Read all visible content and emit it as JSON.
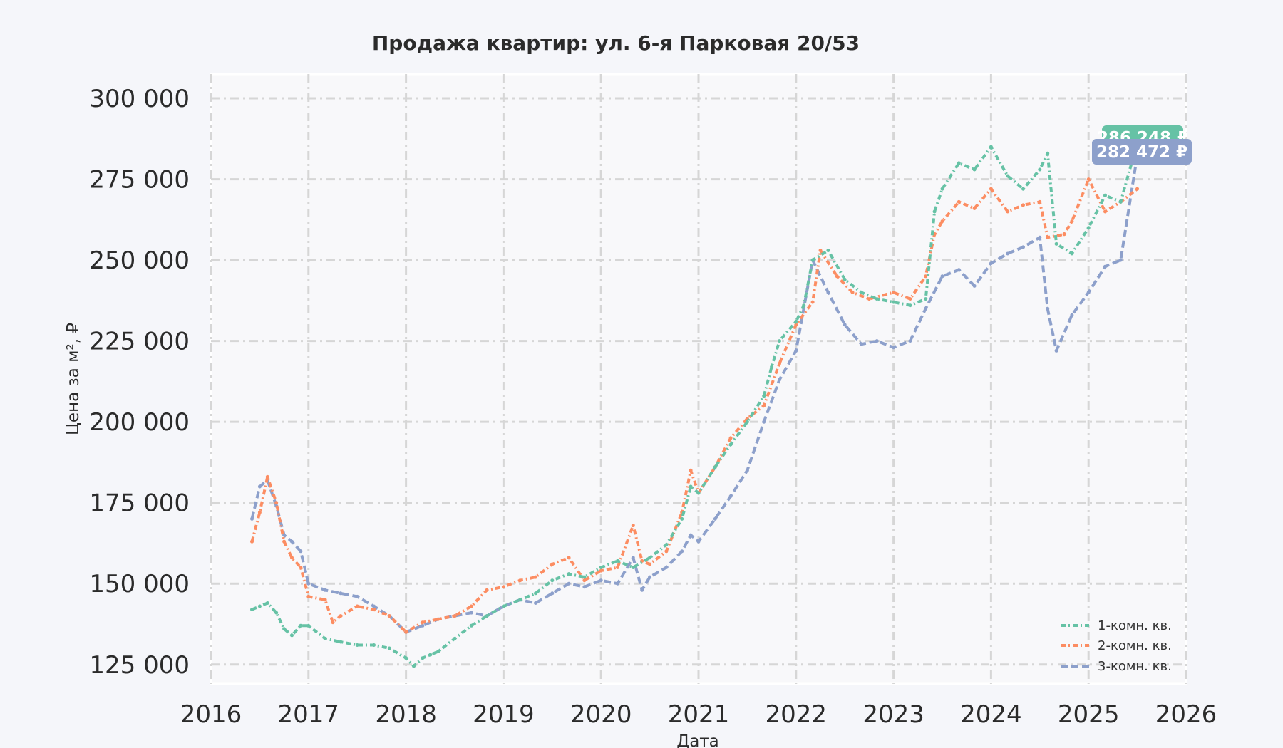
{
  "chart_data": {
    "type": "line",
    "title": "Продажа квартир: ул. 6-я Парковая 20/53",
    "xlabel": "Дата",
    "ylabel": "Цена за м², ₽",
    "xlim": [
      2016,
      2026
    ],
    "ylim": [
      119000,
      307500
    ],
    "x_ticks": [
      "2016",
      "2017",
      "2018",
      "2019",
      "2020",
      "2021",
      "2022",
      "2023",
      "2024",
      "2025",
      "2026"
    ],
    "y_ticks": [
      {
        "value": 125000,
        "label": "125 000"
      },
      {
        "value": 150000,
        "label": "150 000"
      },
      {
        "value": 175000,
        "label": "175 000"
      },
      {
        "value": 200000,
        "label": "200 000"
      },
      {
        "value": 225000,
        "label": "225 000"
      },
      {
        "value": 250000,
        "label": "250 000"
      },
      {
        "value": 275000,
        "label": "275 000"
      },
      {
        "value": 300000,
        "label": "300 000"
      }
    ],
    "grid": true,
    "legend_position": "bottom-right",
    "series": [
      {
        "name": "1-комн. кв.",
        "color": "#66c2a5",
        "x": [
          2016.42,
          2016.5,
          2016.58,
          2016.67,
          2016.75,
          2016.83,
          2016.92,
          2017.0,
          2017.17,
          2017.33,
          2017.5,
          2017.67,
          2017.83,
          2018.0,
          2018.08,
          2018.17,
          2018.25,
          2018.33,
          2018.5,
          2018.67,
          2018.83,
          2019.0,
          2019.17,
          2019.33,
          2019.5,
          2019.67,
          2019.83,
          2020.0,
          2020.17,
          2020.33,
          2020.5,
          2020.67,
          2020.83,
          2020.92,
          2021.0,
          2021.17,
          2021.33,
          2021.5,
          2021.67,
          2021.75,
          2021.83,
          2022.0,
          2022.08,
          2022.17,
          2022.33,
          2022.5,
          2022.67,
          2022.83,
          2023.0,
          2023.17,
          2023.33,
          2023.42,
          2023.5,
          2023.67,
          2023.83,
          2024.0,
          2024.17,
          2024.33,
          2024.5,
          2024.58,
          2024.67,
          2024.83,
          2025.0,
          2025.17,
          2025.33,
          2025.5
        ],
        "values": [
          142000,
          143000,
          144000,
          141000,
          136000,
          134000,
          137000,
          137000,
          133000,
          132000,
          131000,
          131000,
          130000,
          127000,
          124500,
          127000,
          128000,
          129000,
          133000,
          137000,
          140000,
          143000,
          145000,
          147000,
          151000,
          153000,
          152000,
          155000,
          157000,
          155000,
          158000,
          162000,
          170000,
          180000,
          178000,
          186000,
          193000,
          200000,
          208000,
          217000,
          225000,
          231000,
          236000,
          250000,
          253000,
          244000,
          240000,
          238000,
          237000,
          236000,
          238000,
          265000,
          272000,
          280000,
          278000,
          285000,
          276000,
          272000,
          278000,
          283000,
          255000,
          252000,
          260000,
          270000,
          268000,
          286248
        ]
      },
      {
        "name": "2-комн. кв.",
        "color": "#fc8d62",
        "x": [
          2016.42,
          2016.5,
          2016.58,
          2016.67,
          2016.75,
          2016.83,
          2016.92,
          2017.0,
          2017.17,
          2017.25,
          2017.33,
          2017.5,
          2017.67,
          2017.83,
          2018.0,
          2018.17,
          2018.33,
          2018.5,
          2018.67,
          2018.83,
          2019.0,
          2019.17,
          2019.33,
          2019.5,
          2019.67,
          2019.83,
          2020.0,
          2020.17,
          2020.33,
          2020.42,
          2020.5,
          2020.67,
          2020.83,
          2020.92,
          2021.0,
          2021.17,
          2021.33,
          2021.5,
          2021.67,
          2021.83,
          2022.0,
          2022.17,
          2022.25,
          2022.42,
          2022.58,
          2022.75,
          2023.0,
          2023.17,
          2023.33,
          2023.42,
          2023.5,
          2023.67,
          2023.83,
          2024.0,
          2024.17,
          2024.33,
          2024.5,
          2024.58,
          2024.75,
          2024.83,
          2025.0,
          2025.17,
          2025.33,
          2025.5
        ],
        "values": [
          163000,
          172000,
          183000,
          175000,
          163000,
          158000,
          155000,
          146000,
          145000,
          138000,
          140000,
          143000,
          142000,
          140000,
          135000,
          138000,
          139000,
          140000,
          143000,
          148000,
          149000,
          151000,
          152000,
          156000,
          158000,
          151000,
          154000,
          155000,
          168000,
          157000,
          156000,
          160000,
          172000,
          185000,
          178000,
          186000,
          195000,
          201000,
          205000,
          218000,
          230000,
          237000,
          253000,
          245000,
          240000,
          238000,
          240000,
          238000,
          245000,
          258000,
          262000,
          268000,
          266000,
          272000,
          265000,
          267000,
          268000,
          257000,
          258000,
          262000,
          275000,
          265000,
          268000,
          272000
        ]
      },
      {
        "name": "3-комн. кв.",
        "color": "#8da0cb",
        "x": [
          2016.42,
          2016.5,
          2016.58,
          2016.67,
          2016.75,
          2016.83,
          2016.92,
          2017.0,
          2017.17,
          2017.33,
          2017.5,
          2017.67,
          2017.83,
          2018.0,
          2018.17,
          2018.33,
          2018.5,
          2018.67,
          2018.83,
          2019.0,
          2019.17,
          2019.33,
          2019.5,
          2019.67,
          2019.83,
          2020.0,
          2020.17,
          2020.33,
          2020.42,
          2020.5,
          2020.67,
          2020.83,
          2020.92,
          2021.0,
          2021.17,
          2021.33,
          2021.5,
          2021.67,
          2021.83,
          2022.0,
          2022.17,
          2022.33,
          2022.5,
          2022.67,
          2022.83,
          2023.0,
          2023.17,
          2023.33,
          2023.5,
          2023.67,
          2023.83,
          2024.0,
          2024.17,
          2024.33,
          2024.5,
          2024.58,
          2024.67,
          2024.83,
          2025.0,
          2025.17,
          2025.33,
          2025.5
        ],
        "values": [
          170000,
          180000,
          182000,
          174000,
          165000,
          163000,
          160000,
          150000,
          148000,
          147000,
          146000,
          143000,
          140000,
          135000,
          137000,
          139000,
          140000,
          141000,
          140000,
          143000,
          145000,
          144000,
          147000,
          150000,
          149000,
          151000,
          150000,
          158000,
          148000,
          152000,
          155000,
          160000,
          165000,
          163000,
          170000,
          177000,
          185000,
          200000,
          213000,
          222000,
          250000,
          240000,
          230000,
          224000,
          225000,
          223000,
          225000,
          235000,
          245000,
          247000,
          242000,
          249000,
          252000,
          254000,
          257000,
          235000,
          222000,
          233000,
          240000,
          248000,
          250000,
          282472
        ]
      }
    ],
    "badges": [
      {
        "series": "1-комн. кв.",
        "label": "286 248 ₽",
        "color": "#66c2a5"
      },
      {
        "series": "2-комн. кв.",
        "label": "",
        "color": "#fc8d62"
      },
      {
        "series": "3-комн. кв.",
        "label": "282 472 ₽",
        "color": "#8da0cb"
      }
    ]
  }
}
